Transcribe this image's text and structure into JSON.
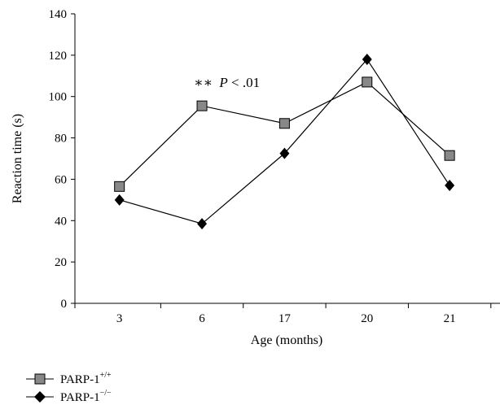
{
  "chart_data": {
    "type": "line",
    "categories": [
      "3",
      "6",
      "17",
      "20",
      "21"
    ],
    "series": [
      {
        "name": "PARP-1",
        "name_sup": "+/+",
        "marker": "square",
        "color": "#888888",
        "values": [
          56.5,
          95.5,
          87,
          107,
          71.5
        ]
      },
      {
        "name": "PARP-1",
        "name_sup": "−/−",
        "marker": "diamond",
        "color": "#000000",
        "values": [
          50,
          38.5,
          72.5,
          118,
          57
        ]
      }
    ],
    "xlabel": "Age (months)",
    "ylabel": "Reaction time (s)",
    "ylim": [
      0,
      140
    ],
    "yticks": [
      "0",
      "20",
      "40",
      "60",
      "80",
      "100",
      "120",
      "140"
    ],
    "annotation": {
      "stars": "∗∗",
      "p": "P",
      "rest": " < .01"
    },
    "grid": false,
    "legend_position": "bottom-left"
  }
}
